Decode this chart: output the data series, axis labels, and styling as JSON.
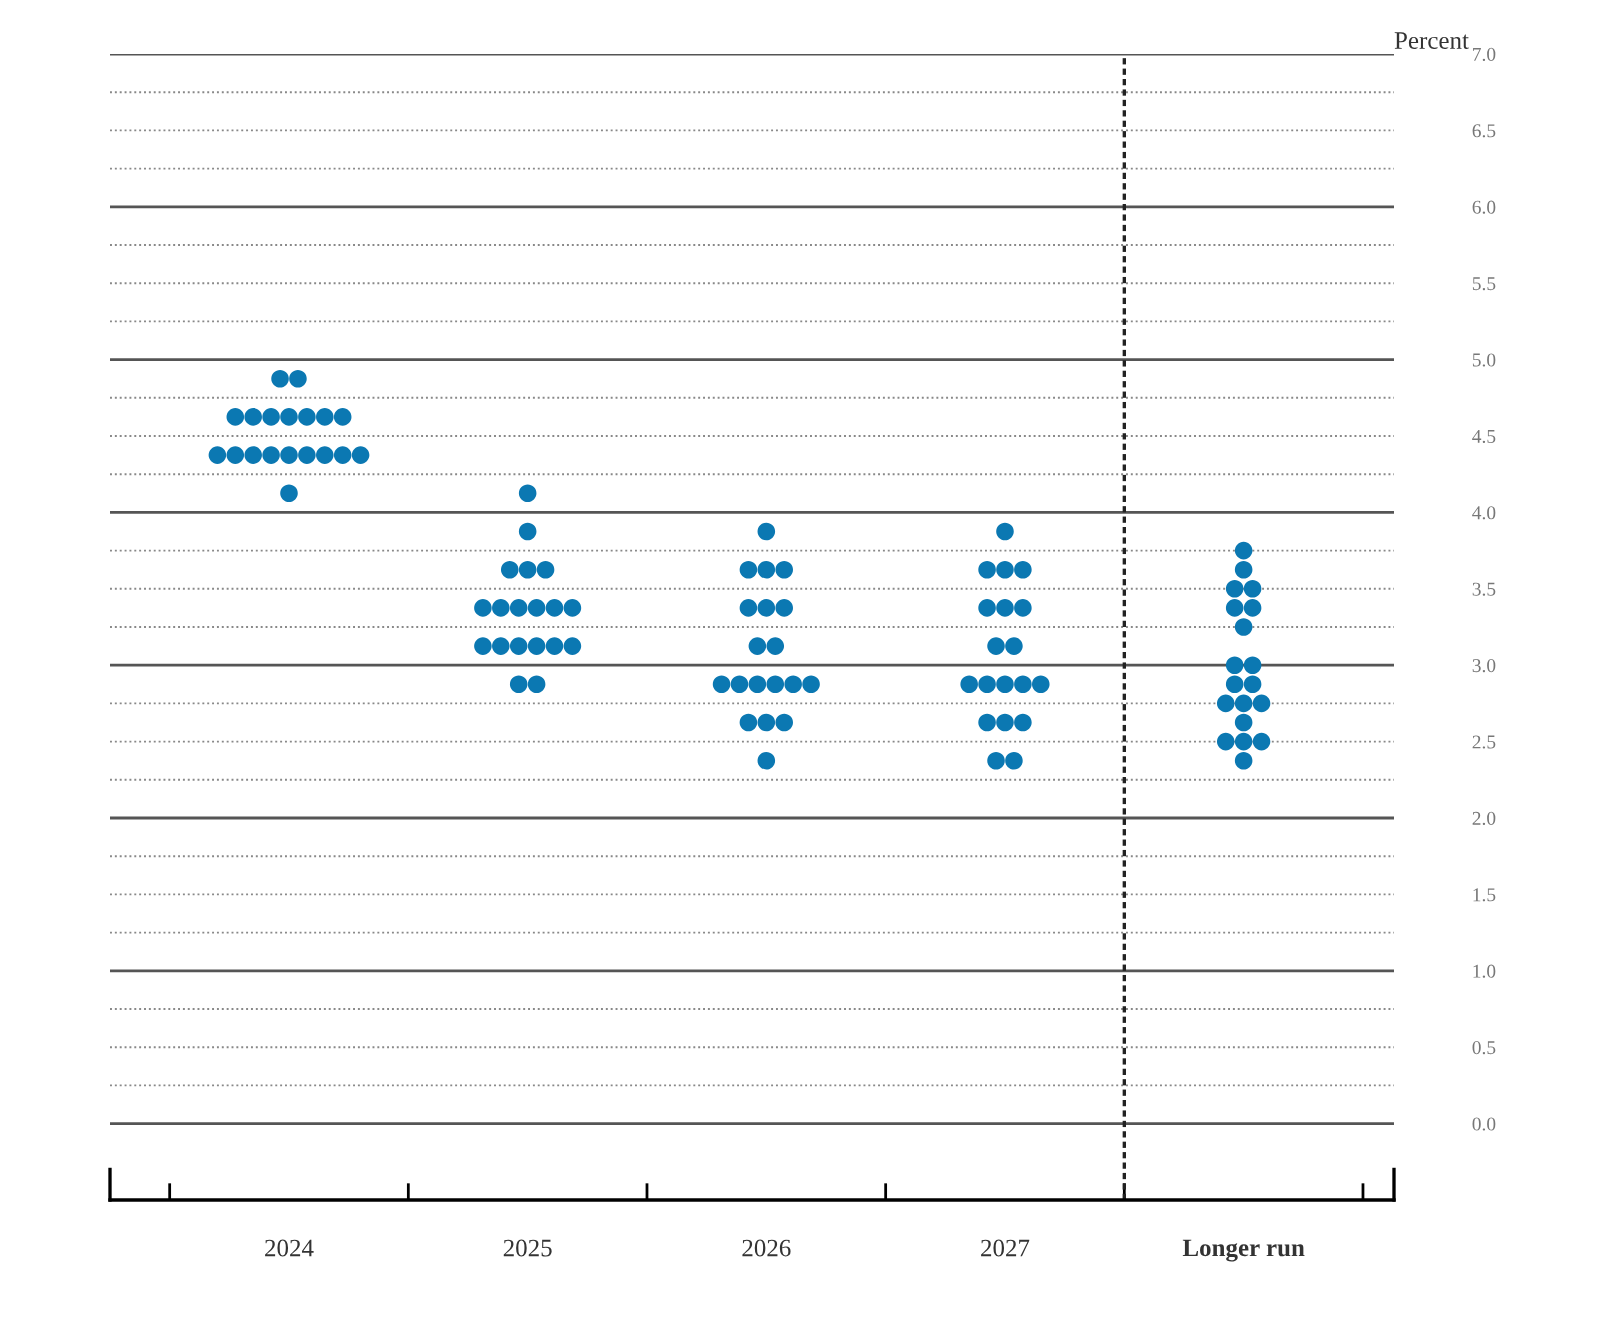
{
  "chart_data": {
    "type": "scatter",
    "ylabel": "Percent",
    "categories": [
      "2024",
      "2025",
      "2026",
      "2027",
      "Longer run"
    ],
    "series": [
      {
        "color": "#0b78b2",
        "values": [
          4.875,
          4.125,
          3.875,
          3.875,
          3.75
        ]
      },
      {
        "color": "#0b78b2",
        "values": [
          4.875,
          3.875,
          3.625,
          3.625,
          3.625
        ]
      },
      {
        "color": "#0b78b2",
        "values": [
          4.625,
          3.625,
          3.625,
          3.625,
          3.5
        ]
      },
      {
        "color": "#0b78b2",
        "values": [
          4.625,
          3.625,
          3.625,
          3.625,
          3.5
        ]
      },
      {
        "color": "#0b78b2",
        "values": [
          4.625,
          3.625,
          3.375,
          3.375,
          3.375
        ]
      },
      {
        "color": "#0b78b2",
        "values": [
          4.625,
          3.375,
          3.375,
          3.375,
          3.375
        ]
      },
      {
        "color": "#0b78b2",
        "values": [
          4.625,
          3.375,
          3.375,
          3.375,
          3.25
        ]
      },
      {
        "color": "#0b78b2",
        "values": [
          4.625,
          3.375,
          3.125,
          3.125,
          3.0
        ]
      },
      {
        "color": "#0b78b2",
        "values": [
          4.625,
          3.375,
          3.125,
          3.125,
          3.0
        ]
      },
      {
        "color": "#0b78b2",
        "values": [
          4.375,
          3.375,
          2.875,
          2.875,
          2.875
        ]
      },
      {
        "color": "#0b78b2",
        "values": [
          4.375,
          3.375,
          2.875,
          2.875,
          2.875
        ]
      },
      {
        "color": "#0b78b2",
        "values": [
          4.375,
          3.125,
          2.875,
          2.875,
          2.75
        ]
      },
      {
        "color": "#0b78b2",
        "values": [
          4.375,
          3.125,
          2.875,
          2.875,
          2.75
        ]
      },
      {
        "color": "#0b78b2",
        "values": [
          4.375,
          3.125,
          2.875,
          2.875,
          2.75
        ]
      },
      {
        "color": "#0b78b2",
        "values": [
          4.375,
          3.125,
          2.875,
          2.625,
          2.625
        ]
      },
      {
        "color": "#0b78b2",
        "values": [
          4.375,
          3.125,
          2.625,
          2.625,
          2.5
        ]
      },
      {
        "color": "#0b78b2",
        "values": [
          4.375,
          3.125,
          2.625,
          2.625,
          2.5
        ]
      },
      {
        "color": "#0b78b2",
        "values": [
          4.375,
          2.875,
          2.625,
          2.375,
          2.5
        ]
      },
      {
        "color": "#0b78b2",
        "values": [
          4.125,
          2.875,
          2.375,
          2.375,
          2.375
        ]
      }
    ],
    "marker": "circle",
    "grid": "y",
    "ylim": [
      -0.5,
      7.0
    ],
    "yticks": [
      {
        "value": 0,
        "label": "0.0"
      },
      {
        "value": 0.25,
        "label": null
      },
      {
        "value": 0.5,
        "label": "0.5"
      },
      {
        "value": 0.75,
        "label": null
      },
      {
        "value": 1,
        "label": "1.0"
      },
      {
        "value": 1.25,
        "label": null
      },
      {
        "value": 1.5,
        "label": "1.5"
      },
      {
        "value": 1.75,
        "label": null
      },
      {
        "value": 2,
        "label": "2.0"
      },
      {
        "value": 2.25,
        "label": null
      },
      {
        "value": 2.5,
        "label": "2.5"
      },
      {
        "value": 2.75,
        "label": null
      },
      {
        "value": 3,
        "label": "3.0"
      },
      {
        "value": 3.25,
        "label": null
      },
      {
        "value": 3.5,
        "label": "3.5"
      },
      {
        "value": 3.75,
        "label": null
      },
      {
        "value": 4,
        "label": "4.0"
      },
      {
        "value": 4.25,
        "label": null
      },
      {
        "value": 4.5,
        "label": "4.5"
      },
      {
        "value": 4.75,
        "label": null
      },
      {
        "value": 5,
        "label": "5.0"
      },
      {
        "value": 5.25,
        "label": null
      },
      {
        "value": 5.5,
        "label": "5.5"
      },
      {
        "value": 5.75,
        "label": null
      },
      {
        "value": 6,
        "label": "6.0"
      },
      {
        "value": 6.25,
        "label": null
      },
      {
        "value": 6.5,
        "label": "6.5"
      },
      {
        "value": 6.75,
        "label": null
      },
      {
        "value": 7,
        "label": "7.0"
      }
    ]
  }
}
